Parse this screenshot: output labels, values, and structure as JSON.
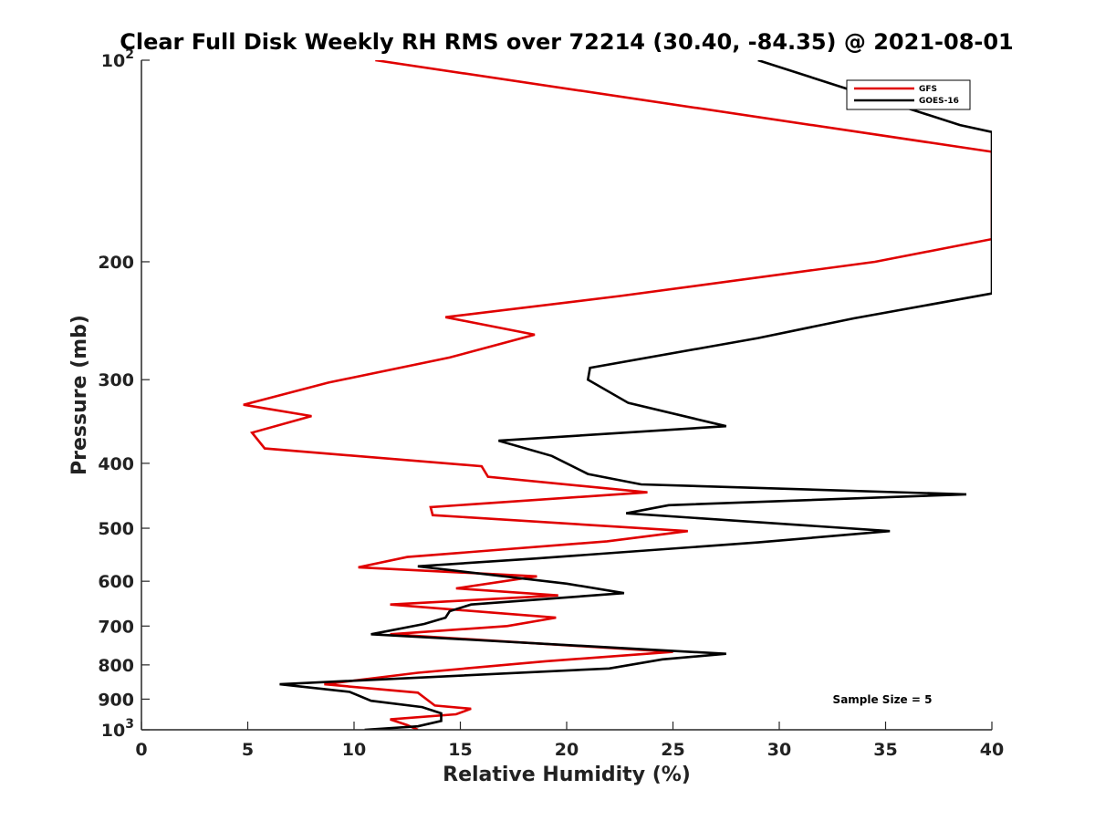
{
  "chart_data": {
    "type": "line",
    "title": "Clear Full Disk Weekly RH RMS over 72214 (30.40, -84.35) @ 2021-08-01",
    "xlabel": "Relative Humidity (%)",
    "ylabel": "Pressure (mb)",
    "xlim": [
      0,
      40
    ],
    "ylim": [
      100,
      1000
    ],
    "yscale": "log",
    "yreversed": true,
    "xticks": [
      0,
      5,
      10,
      15,
      20,
      25,
      30,
      35,
      40
    ],
    "xtick_labels": [
      "0",
      "5",
      "10",
      "15",
      "20",
      "25",
      "30",
      "35",
      "40"
    ],
    "yticks": [
      100,
      200,
      300,
      400,
      500,
      600,
      700,
      800,
      900,
      1000
    ],
    "ytick_labels": [
      {
        "base": "10",
        "exp": "2"
      },
      {
        "base": "200",
        "exp": ""
      },
      {
        "base": "300",
        "exp": ""
      },
      {
        "base": "400",
        "exp": ""
      },
      {
        "base": "500",
        "exp": ""
      },
      {
        "base": "600",
        "exp": ""
      },
      {
        "base": "700",
        "exp": ""
      },
      {
        "base": "800",
        "exp": ""
      },
      {
        "base": "900",
        "exp": ""
      },
      {
        "base": "10",
        "exp": "3"
      }
    ],
    "legend_position": "top-right",
    "annotation": "Sample Size = 5",
    "series": [
      {
        "name": "GFS",
        "color": "#e00000",
        "points": [
          [
            11.0,
            100
          ],
          [
            40.0,
            137
          ],
          [
            40.0,
            185
          ],
          [
            34.5,
            200
          ],
          [
            22.5,
            225
          ],
          [
            14.3,
            242
          ],
          [
            18.5,
            257
          ],
          [
            14.5,
            278
          ],
          [
            8.8,
            303
          ],
          [
            4.8,
            327
          ],
          [
            8.0,
            340
          ],
          [
            5.2,
            360
          ],
          [
            5.8,
            380
          ],
          [
            16.0,
            404
          ],
          [
            16.3,
            419
          ],
          [
            23.8,
            442
          ],
          [
            13.6,
            465
          ],
          [
            13.7,
            478
          ],
          [
            25.7,
            505
          ],
          [
            21.9,
            523
          ],
          [
            12.5,
            552
          ],
          [
            10.2,
            572
          ],
          [
            18.6,
            590
          ],
          [
            14.8,
            615
          ],
          [
            19.6,
            630
          ],
          [
            11.7,
            650
          ],
          [
            19.5,
            680
          ],
          [
            17.2,
            700
          ],
          [
            11.7,
            720
          ],
          [
            25.0,
            765
          ],
          [
            19.0,
            790
          ],
          [
            13.0,
            822
          ],
          [
            8.6,
            855
          ],
          [
            13.0,
            880
          ],
          [
            13.8,
            920
          ],
          [
            15.5,
            930
          ],
          [
            14.8,
            948
          ],
          [
            11.7,
            965
          ],
          [
            12.5,
            984
          ],
          [
            13.0,
            1000
          ]
        ]
      },
      {
        "name": "GOES-16",
        "color": "#000000",
        "points": [
          [
            29.0,
            100
          ],
          [
            38.5,
            125
          ],
          [
            40.0,
            128
          ],
          [
            40.0,
            223
          ],
          [
            33.5,
            243
          ],
          [
            29.0,
            260
          ],
          [
            21.1,
            288
          ],
          [
            21.0,
            300
          ],
          [
            22.9,
            325
          ],
          [
            27.5,
            352
          ],
          [
            16.8,
            370
          ],
          [
            19.3,
            390
          ],
          [
            21.0,
            415
          ],
          [
            23.5,
            430
          ],
          [
            38.8,
            445
          ],
          [
            24.8,
            462
          ],
          [
            22.8,
            475
          ],
          [
            35.2,
            505
          ],
          [
            29.0,
            525
          ],
          [
            18.5,
            555
          ],
          [
            13.0,
            570
          ],
          [
            20.0,
            605
          ],
          [
            22.7,
            625
          ],
          [
            15.5,
            650
          ],
          [
            14.5,
            665
          ],
          [
            14.3,
            680
          ],
          [
            13.3,
            695
          ],
          [
            10.8,
            720
          ],
          [
            27.5,
            770
          ],
          [
            24.5,
            785
          ],
          [
            22.0,
            810
          ],
          [
            6.5,
            855
          ],
          [
            9.8,
            878
          ],
          [
            10.8,
            905
          ],
          [
            13.2,
            925
          ],
          [
            14.1,
            945
          ],
          [
            14.1,
            970
          ],
          [
            13.0,
            988
          ],
          [
            10.5,
            1000
          ]
        ]
      }
    ]
  }
}
